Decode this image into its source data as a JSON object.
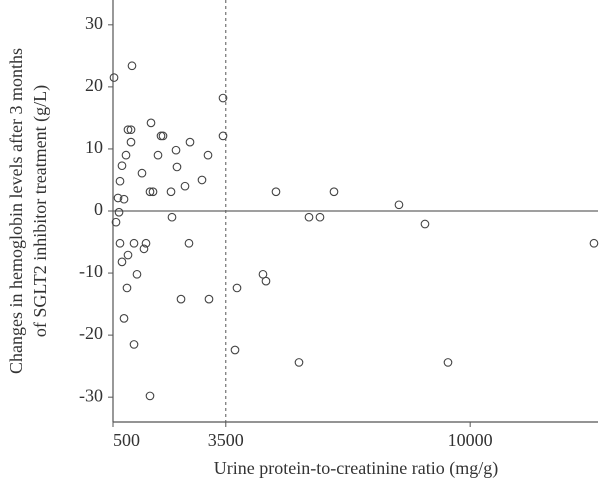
{
  "chart_data": {
    "type": "scatter",
    "xlabel": "Urine protein-to-creatinine ratio (mg/g)",
    "ylabel_lines": [
      "Changes in hemoglobin levels after 3 months",
      "of SGLT2 inhibitor treatment (g/L)"
    ],
    "xlim": [
      500,
      13400
    ],
    "ylim": [
      -34,
      34
    ],
    "xticks": [
      500,
      3500,
      10000
    ],
    "yticks": [
      -30,
      -20,
      -10,
      0,
      10,
      20,
      30
    ],
    "vline": 3500,
    "hline": 0,
    "color": "#444",
    "x": [
      527,
      1005,
      580,
      633,
      660,
      686,
      739,
      686,
      739,
      793,
      846,
      899,
      979,
      979,
      1059,
      899,
      872,
      793,
      1059,
      1138,
      1271,
      1324,
      1378,
      1511,
      1484,
      1564,
      1697,
      1777,
      1830,
      2043,
      2069,
      2176,
      2202,
      2309,
      2415,
      2548,
      2521,
      2867,
      3027,
      3053,
      1484,
      3426,
      3426,
      3745,
      3798,
      4489,
      4569,
      4835,
      5447,
      5713,
      6005,
      6378,
      8106,
      8798,
      9410,
      13293
    ],
    "values": [
      21.5,
      23.4,
      -1.8,
      2.1,
      -0.2,
      4.8,
      7.3,
      -5.2,
      -8.2,
      1.9,
      9.0,
      13.1,
      13.1,
      11.1,
      -5.2,
      -7.1,
      -12.4,
      -17.3,
      -21.5,
      -10.2,
      6.1,
      -6.1,
      -5.2,
      14.2,
      3.1,
      3.1,
      9.0,
      12.1,
      12.1,
      3.1,
      -1.0,
      9.8,
      7.1,
      -14.2,
      4.0,
      11.1,
      -5.2,
      5.0,
      9.0,
      -14.2,
      -29.8,
      18.2,
      12.1,
      -22.4,
      -12.4,
      -10.2,
      -11.3,
      3.1,
      -24.4,
      -1.0,
      -1.0,
      3.1,
      1.0,
      -2.1,
      -24.4,
      -5.2
    ]
  }
}
